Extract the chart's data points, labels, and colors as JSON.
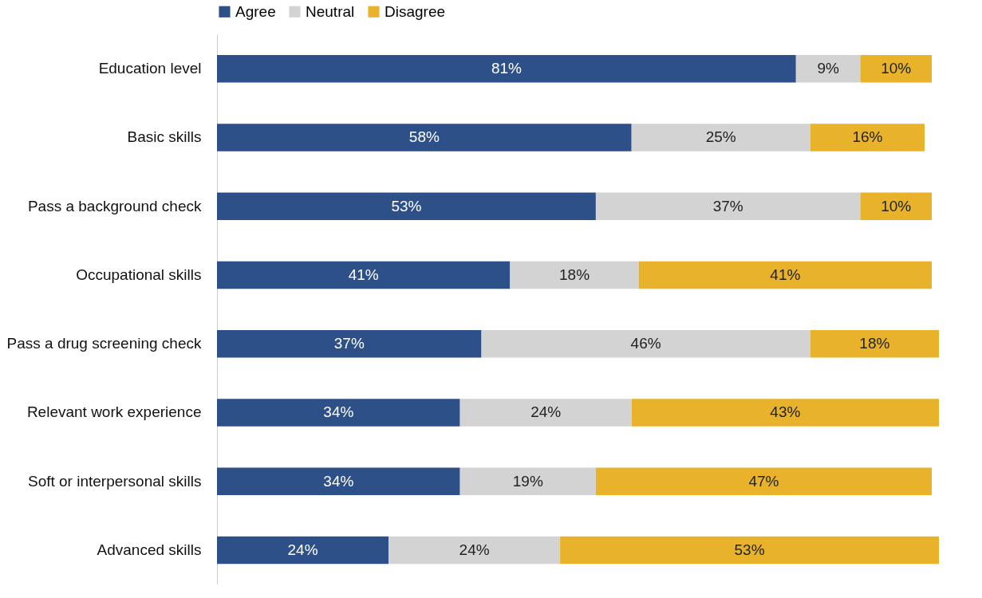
{
  "chart_data": {
    "type": "bar",
    "orientation": "horizontal",
    "stacked": true,
    "legend": "top",
    "tick_labels": "y",
    "grid": false,
    "categories": [
      "Education level",
      "Basic skills",
      "Pass a background check",
      "Occupational skills",
      "Pass a drug screening check",
      "Relevant work experience",
      "Soft or interpersonal skills",
      "Advanced skills"
    ],
    "series": [
      {
        "name": "Agree",
        "color": "#2e5089",
        "values": [
          81,
          58,
          53,
          41,
          37,
          34,
          34,
          24
        ],
        "value_labels": [
          "81%",
          "58%",
          "53%",
          "41%",
          "37%",
          "34%",
          "34%",
          "24%"
        ]
      },
      {
        "name": "Neutral",
        "color": "#d3d3d3",
        "values": [
          9,
          25,
          37,
          18,
          46,
          24,
          19,
          24
        ],
        "value_labels": [
          "9%",
          "25%",
          "37%",
          "18%",
          "46%",
          "24%",
          "19%",
          "24%"
        ]
      },
      {
        "name": "Disagree",
        "color": "#e8b32b",
        "values": [
          10,
          16,
          10,
          41,
          18,
          43,
          47,
          53
        ],
        "value_labels": [
          "10%",
          "16%",
          "10%",
          "41%",
          "18%",
          "43%",
          "47%",
          "53%"
        ]
      }
    ]
  }
}
